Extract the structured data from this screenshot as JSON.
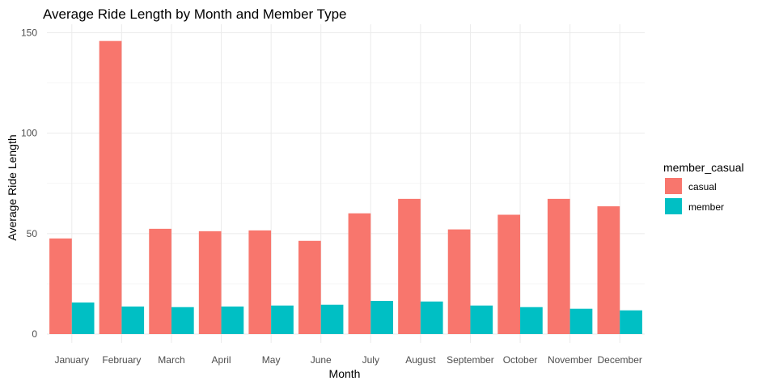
{
  "chart_data": {
    "type": "bar",
    "title": "Average Ride Length by Month and Member Type",
    "xlabel": "Month",
    "ylabel": "Average Ride Length",
    "ylim": [
      0,
      152
    ],
    "yticks": [
      0,
      50,
      100,
      150
    ],
    "grid": true,
    "legend": {
      "title": "member_casual",
      "placement": "right"
    },
    "categories": [
      "January",
      "February",
      "March",
      "April",
      "May",
      "June",
      "July",
      "August",
      "September",
      "October",
      "November",
      "December"
    ],
    "series": [
      {
        "name": "casual",
        "color": "#F8766D",
        "values": [
          47.6,
          145.9,
          52.4,
          51.2,
          51.6,
          46.4,
          60.1,
          67.3,
          52.1,
          59.4,
          67.3,
          63.6
        ]
      },
      {
        "name": "member",
        "color": "#00BFC4",
        "values": [
          15.7,
          13.7,
          13.4,
          13.7,
          14.2,
          14.6,
          16.5,
          16.2,
          14.2,
          13.4,
          12.6,
          11.8
        ]
      }
    ]
  }
}
